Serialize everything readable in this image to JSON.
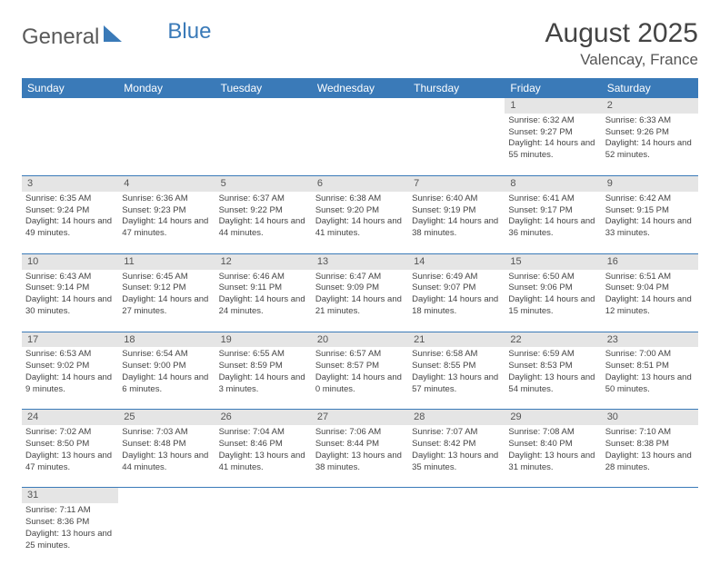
{
  "logo": {
    "part1": "General",
    "part2": "Blue"
  },
  "title": "August 2025",
  "location": "Valencay, France",
  "colors": {
    "headerBg": "#3a7ab8",
    "dayBg": "#e5e5e5",
    "text": "#444"
  },
  "dayHeaders": [
    "Sunday",
    "Monday",
    "Tuesday",
    "Wednesday",
    "Thursday",
    "Friday",
    "Saturday"
  ],
  "weeks": [
    [
      null,
      null,
      null,
      null,
      null,
      {
        "n": "1",
        "sr": "6:32 AM",
        "ss": "9:27 PM",
        "dl": "14 hours and 55 minutes."
      },
      {
        "n": "2",
        "sr": "6:33 AM",
        "ss": "9:26 PM",
        "dl": "14 hours and 52 minutes."
      }
    ],
    [
      {
        "n": "3",
        "sr": "6:35 AM",
        "ss": "9:24 PM",
        "dl": "14 hours and 49 minutes."
      },
      {
        "n": "4",
        "sr": "6:36 AM",
        "ss": "9:23 PM",
        "dl": "14 hours and 47 minutes."
      },
      {
        "n": "5",
        "sr": "6:37 AM",
        "ss": "9:22 PM",
        "dl": "14 hours and 44 minutes."
      },
      {
        "n": "6",
        "sr": "6:38 AM",
        "ss": "9:20 PM",
        "dl": "14 hours and 41 minutes."
      },
      {
        "n": "7",
        "sr": "6:40 AM",
        "ss": "9:19 PM",
        "dl": "14 hours and 38 minutes."
      },
      {
        "n": "8",
        "sr": "6:41 AM",
        "ss": "9:17 PM",
        "dl": "14 hours and 36 minutes."
      },
      {
        "n": "9",
        "sr": "6:42 AM",
        "ss": "9:15 PM",
        "dl": "14 hours and 33 minutes."
      }
    ],
    [
      {
        "n": "10",
        "sr": "6:43 AM",
        "ss": "9:14 PM",
        "dl": "14 hours and 30 minutes."
      },
      {
        "n": "11",
        "sr": "6:45 AM",
        "ss": "9:12 PM",
        "dl": "14 hours and 27 minutes."
      },
      {
        "n": "12",
        "sr": "6:46 AM",
        "ss": "9:11 PM",
        "dl": "14 hours and 24 minutes."
      },
      {
        "n": "13",
        "sr": "6:47 AM",
        "ss": "9:09 PM",
        "dl": "14 hours and 21 minutes."
      },
      {
        "n": "14",
        "sr": "6:49 AM",
        "ss": "9:07 PM",
        "dl": "14 hours and 18 minutes."
      },
      {
        "n": "15",
        "sr": "6:50 AM",
        "ss": "9:06 PM",
        "dl": "14 hours and 15 minutes."
      },
      {
        "n": "16",
        "sr": "6:51 AM",
        "ss": "9:04 PM",
        "dl": "14 hours and 12 minutes."
      }
    ],
    [
      {
        "n": "17",
        "sr": "6:53 AM",
        "ss": "9:02 PM",
        "dl": "14 hours and 9 minutes."
      },
      {
        "n": "18",
        "sr": "6:54 AM",
        "ss": "9:00 PM",
        "dl": "14 hours and 6 minutes."
      },
      {
        "n": "19",
        "sr": "6:55 AM",
        "ss": "8:59 PM",
        "dl": "14 hours and 3 minutes."
      },
      {
        "n": "20",
        "sr": "6:57 AM",
        "ss": "8:57 PM",
        "dl": "14 hours and 0 minutes."
      },
      {
        "n": "21",
        "sr": "6:58 AM",
        "ss": "8:55 PM",
        "dl": "13 hours and 57 minutes."
      },
      {
        "n": "22",
        "sr": "6:59 AM",
        "ss": "8:53 PM",
        "dl": "13 hours and 54 minutes."
      },
      {
        "n": "23",
        "sr": "7:00 AM",
        "ss": "8:51 PM",
        "dl": "13 hours and 50 minutes."
      }
    ],
    [
      {
        "n": "24",
        "sr": "7:02 AM",
        "ss": "8:50 PM",
        "dl": "13 hours and 47 minutes."
      },
      {
        "n": "25",
        "sr": "7:03 AM",
        "ss": "8:48 PM",
        "dl": "13 hours and 44 minutes."
      },
      {
        "n": "26",
        "sr": "7:04 AM",
        "ss": "8:46 PM",
        "dl": "13 hours and 41 minutes."
      },
      {
        "n": "27",
        "sr": "7:06 AM",
        "ss": "8:44 PM",
        "dl": "13 hours and 38 minutes."
      },
      {
        "n": "28",
        "sr": "7:07 AM",
        "ss": "8:42 PM",
        "dl": "13 hours and 35 minutes."
      },
      {
        "n": "29",
        "sr": "7:08 AM",
        "ss": "8:40 PM",
        "dl": "13 hours and 31 minutes."
      },
      {
        "n": "30",
        "sr": "7:10 AM",
        "ss": "8:38 PM",
        "dl": "13 hours and 28 minutes."
      }
    ],
    [
      {
        "n": "31",
        "sr": "7:11 AM",
        "ss": "8:36 PM",
        "dl": "13 hours and 25 minutes."
      },
      null,
      null,
      null,
      null,
      null,
      null
    ]
  ],
  "labels": {
    "sunrise": "Sunrise: ",
    "sunset": "Sunset: ",
    "daylight": "Daylight: "
  }
}
